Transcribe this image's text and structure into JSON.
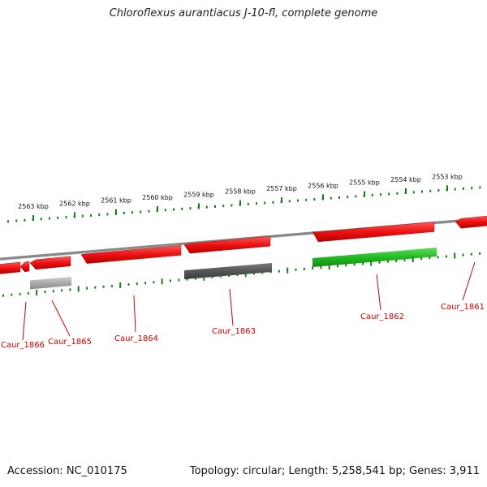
{
  "title": "Chloroflexus aurantiacus J-10-fl, complete genome",
  "footer": {
    "accession_text": "Accession: NC_010175",
    "summary_text": "Topology: circular; Length: 5,258,541 bp; Genes: 3,911"
  },
  "ruler": {
    "tick_labels": [
      "2563 kbp",
      "2562 kbp",
      "2561 kbp",
      "2560 kbp",
      "2559 kbp",
      "2558 kbp",
      "2557 kbp",
      "2556 kbp",
      "2555 kbp",
      "2554 kbp",
      "2553 kbp"
    ]
  },
  "genes": [
    {
      "label": "",
      "strand": "reverse",
      "color": "#ee1111",
      "type": "CDS"
    },
    {
      "label": "Caur_1866",
      "strand": "reverse",
      "color": "#ee1111",
      "type": "CDS"
    },
    {
      "label": "Caur_1865",
      "strand": "reverse",
      "color": "#ee1111",
      "type": "CDS"
    },
    {
      "label": "Caur_1864",
      "strand": "reverse",
      "color": "#ee1111",
      "type": "CDS"
    },
    {
      "label": "Caur_1863",
      "strand": "reverse",
      "color": "#ee1111",
      "type": "CDS"
    },
    {
      "label": "Caur_1862",
      "strand": "reverse",
      "color": "#ee1111",
      "type": "CDS"
    },
    {
      "label": "Caur_1861",
      "strand": "reverse",
      "color": "#ee1111",
      "type": "CDS"
    }
  ],
  "features": [
    {
      "gene": "Caur_1865",
      "kind": "gene-product",
      "color": "#aaaaaa"
    },
    {
      "gene": "Caur_1863",
      "kind": "gene-product",
      "color": "#555555"
    },
    {
      "gene": "Caur_1862",
      "kind": "gene-product",
      "color": "#22bb22"
    }
  ],
  "colors": {
    "cds": "#ee1111",
    "label": "#cc0000",
    "backbone": "#888888",
    "ruler": "#1a7a1a",
    "feature_grey": "#aaaaaa",
    "feature_dark": "#555555",
    "feature_green": "#22bb22"
  }
}
